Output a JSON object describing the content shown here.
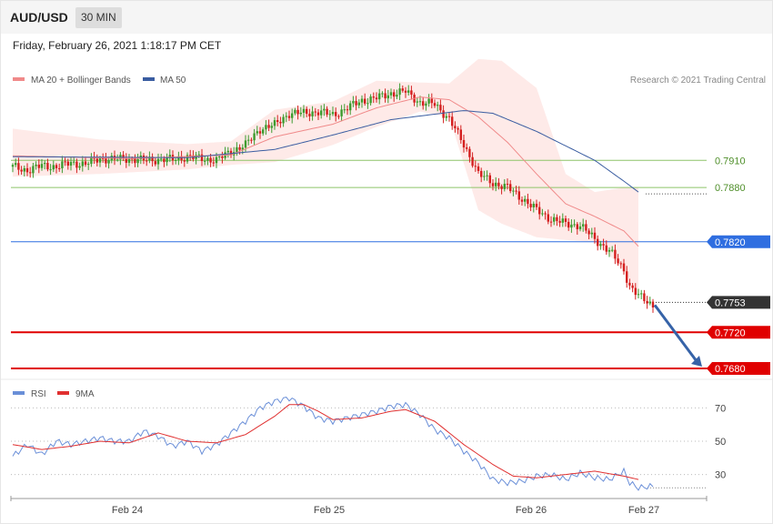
{
  "header": {
    "symbol": "AUD/USD",
    "timeframe": "30 MIN"
  },
  "timestamp": "Friday, February 26, 2021 1:18:17 PM CET",
  "legend": {
    "ma20": "MA 20 + Bollinger Bands",
    "ma50": "MA 50",
    "credit": "Research © 2021 Trading Central"
  },
  "rsi_legend": {
    "rsi": "RSI",
    "ma9": "9MA"
  },
  "colors": {
    "bull": "#3d9b2f",
    "bear": "#d41f1f",
    "ma20": "#f08a8a",
    "ma50": "#3a5da1",
    "band": "#fde3e0",
    "support": "#e00000",
    "resistance_strong": "#2f6ee0",
    "resistance": "#8ec469",
    "rsi": "#6a8fd8",
    "rsi_ma": "#e03030",
    "arrow": "#3663a8",
    "price_tag": "#333333"
  },
  "chart_data": [
    {
      "type": "candlestick",
      "title": "AUD/USD",
      "timeframe": "30 MIN",
      "x_ticks": [
        "Feb 24",
        "Feb 25",
        "Feb 26",
        "Feb 27"
      ],
      "ylim": [
        0.7672,
        0.805
      ],
      "levels": [
        {
          "value": 0.791,
          "label": "0.7910",
          "kind": "resistance"
        },
        {
          "value": 0.788,
          "label": "0.7880",
          "kind": "resistance"
        },
        {
          "value": 0.782,
          "label": "0.7820",
          "kind": "resistance_strong"
        },
        {
          "value": 0.7753,
          "label": "0.7753",
          "kind": "last_price"
        },
        {
          "value": 0.772,
          "label": "0.7720",
          "kind": "support"
        },
        {
          "value": 0.768,
          "label": "0.7680",
          "kind": "support"
        }
      ],
      "forecast_arrow": {
        "from": 0.775,
        "to": 0.768
      },
      "close_keys": [
        [
          0,
          0.7903
        ],
        [
          5,
          0.7899
        ],
        [
          10,
          0.7904
        ],
        [
          15,
          0.7903
        ],
        [
          20,
          0.7907
        ],
        [
          25,
          0.7906
        ],
        [
          30,
          0.7912
        ],
        [
          35,
          0.7911
        ],
        [
          40,
          0.7912
        ],
        [
          45,
          0.791
        ],
        [
          50,
          0.7911
        ],
        [
          55,
          0.7911
        ],
        [
          60,
          0.7914
        ],
        [
          65,
          0.7912
        ],
        [
          70,
          0.791
        ],
        [
          75,
          0.792
        ],
        [
          80,
          0.7927
        ],
        [
          85,
          0.7945
        ],
        [
          90,
          0.7949
        ],
        [
          95,
          0.7962
        ],
        [
          100,
          0.7962
        ],
        [
          105,
          0.7964
        ],
        [
          110,
          0.796
        ],
        [
          115,
          0.7968
        ],
        [
          120,
          0.7976
        ],
        [
          125,
          0.7979
        ],
        [
          130,
          0.7984
        ],
        [
          135,
          0.7986
        ],
        [
          140,
          0.7974
        ],
        [
          145,
          0.7972
        ],
        [
          150,
          0.7956
        ],
        [
          155,
          0.7927
        ],
        [
          158,
          0.7909
        ],
        [
          160,
          0.7895
        ],
        [
          165,
          0.7885
        ],
        [
          170,
          0.788
        ],
        [
          175,
          0.7868
        ],
        [
          180,
          0.7855
        ],
        [
          185,
          0.7845
        ],
        [
          190,
          0.784
        ],
        [
          195,
          0.7838
        ],
        [
          200,
          0.7823
        ],
        [
          205,
          0.781
        ],
        [
          210,
          0.7789
        ],
        [
          212,
          0.7771
        ],
        [
          215,
          0.776
        ],
        [
          220,
          0.775
        ]
      ],
      "bollinger": {
        "keys": [
          [
            0,
            0.7945,
            0.7892
          ],
          [
            30,
            0.7933,
            0.7895
          ],
          [
            60,
            0.7928,
            0.79
          ],
          [
            75,
            0.7931,
            0.7905
          ],
          [
            90,
            0.7966,
            0.7908
          ],
          [
            110,
            0.7975,
            0.7927
          ],
          [
            125,
            0.7998,
            0.7947
          ],
          [
            140,
            0.7996,
            0.7964
          ],
          [
            150,
            0.7995,
            0.7958
          ],
          [
            160,
            0.8022,
            0.7855
          ],
          [
            168,
            0.802,
            0.784
          ],
          [
            180,
            0.799,
            0.7825
          ],
          [
            190,
            0.7895,
            0.7822
          ],
          [
            200,
            0.7875,
            0.782
          ],
          [
            210,
            0.788,
            0.779
          ],
          [
            215,
            0.788,
            0.776
          ]
        ]
      },
      "ma20_keys": [
        [
          0,
          0.7915
        ],
        [
          40,
          0.7912
        ],
        [
          75,
          0.7916
        ],
        [
          90,
          0.7936
        ],
        [
          110,
          0.795
        ],
        [
          125,
          0.7968
        ],
        [
          140,
          0.798
        ],
        [
          150,
          0.7977
        ],
        [
          160,
          0.7958
        ],
        [
          170,
          0.793
        ],
        [
          180,
          0.7895
        ],
        [
          190,
          0.7862
        ],
        [
          200,
          0.7848
        ],
        [
          210,
          0.7832
        ],
        [
          215,
          0.7815
        ]
      ],
      "ma50_keys": [
        [
          0,
          0.7914
        ],
        [
          60,
          0.7913
        ],
        [
          90,
          0.7922
        ],
        [
          110,
          0.7938
        ],
        [
          130,
          0.7955
        ],
        [
          155,
          0.7965
        ],
        [
          165,
          0.7962
        ],
        [
          180,
          0.7942
        ],
        [
          200,
          0.791
        ],
        [
          210,
          0.7887
        ],
        [
          215,
          0.7875
        ]
      ]
    },
    {
      "type": "line",
      "title": "RSI",
      "yticks": [
        30,
        50,
        70
      ],
      "ylim": [
        15,
        85
      ],
      "series": [
        {
          "name": "RSI",
          "keys": [
            [
              0,
              41
            ],
            [
              5,
              48
            ],
            [
              10,
              42
            ],
            [
              15,
              50
            ],
            [
              20,
              48
            ],
            [
              25,
              50
            ],
            [
              30,
              52
            ],
            [
              35,
              50
            ],
            [
              40,
              50
            ],
            [
              45,
              56
            ],
            [
              50,
              53
            ],
            [
              55,
              47
            ],
            [
              60,
              50
            ],
            [
              65,
              44
            ],
            [
              70,
              48
            ],
            [
              75,
              55
            ],
            [
              80,
              62
            ],
            [
              85,
              70
            ],
            [
              90,
              74
            ],
            [
              95,
              76
            ],
            [
              100,
              71
            ],
            [
              105,
              64
            ],
            [
              110,
              62
            ],
            [
              115,
              64
            ],
            [
              120,
              66
            ],
            [
              125,
              68
            ],
            [
              130,
              71
            ],
            [
              135,
              72
            ],
            [
              140,
              66
            ],
            [
              145,
              57
            ],
            [
              150,
              52
            ],
            [
              155,
              44
            ],
            [
              160,
              37
            ],
            [
              165,
              27
            ],
            [
              170,
              25
            ],
            [
              175,
              26
            ],
            [
              180,
              29
            ],
            [
              185,
              30
            ],
            [
              190,
              27
            ],
            [
              195,
              31
            ],
            [
              200,
              28
            ],
            [
              205,
              27
            ],
            [
              210,
              32
            ],
            [
              212,
              25
            ],
            [
              215,
              22
            ],
            [
              220,
              23
            ]
          ]
        },
        {
          "name": "9MA",
          "keys": [
            [
              0,
              48
            ],
            [
              10,
              45
            ],
            [
              20,
              47
            ],
            [
              30,
              50
            ],
            [
              40,
              49
            ],
            [
              50,
              55
            ],
            [
              60,
              50
            ],
            [
              70,
              49
            ],
            [
              80,
              54
            ],
            [
              90,
              65
            ],
            [
              95,
              72
            ],
            [
              100,
              72
            ],
            [
              105,
              68
            ],
            [
              110,
              63
            ],
            [
              120,
              64
            ],
            [
              130,
              68
            ],
            [
              135,
              69
            ],
            [
              145,
              62
            ],
            [
              155,
              48
            ],
            [
              165,
              36
            ],
            [
              172,
              29
            ],
            [
              180,
              28
            ],
            [
              190,
              30
            ],
            [
              200,
              32
            ],
            [
              210,
              29
            ],
            [
              215,
              27
            ]
          ]
        }
      ]
    }
  ]
}
